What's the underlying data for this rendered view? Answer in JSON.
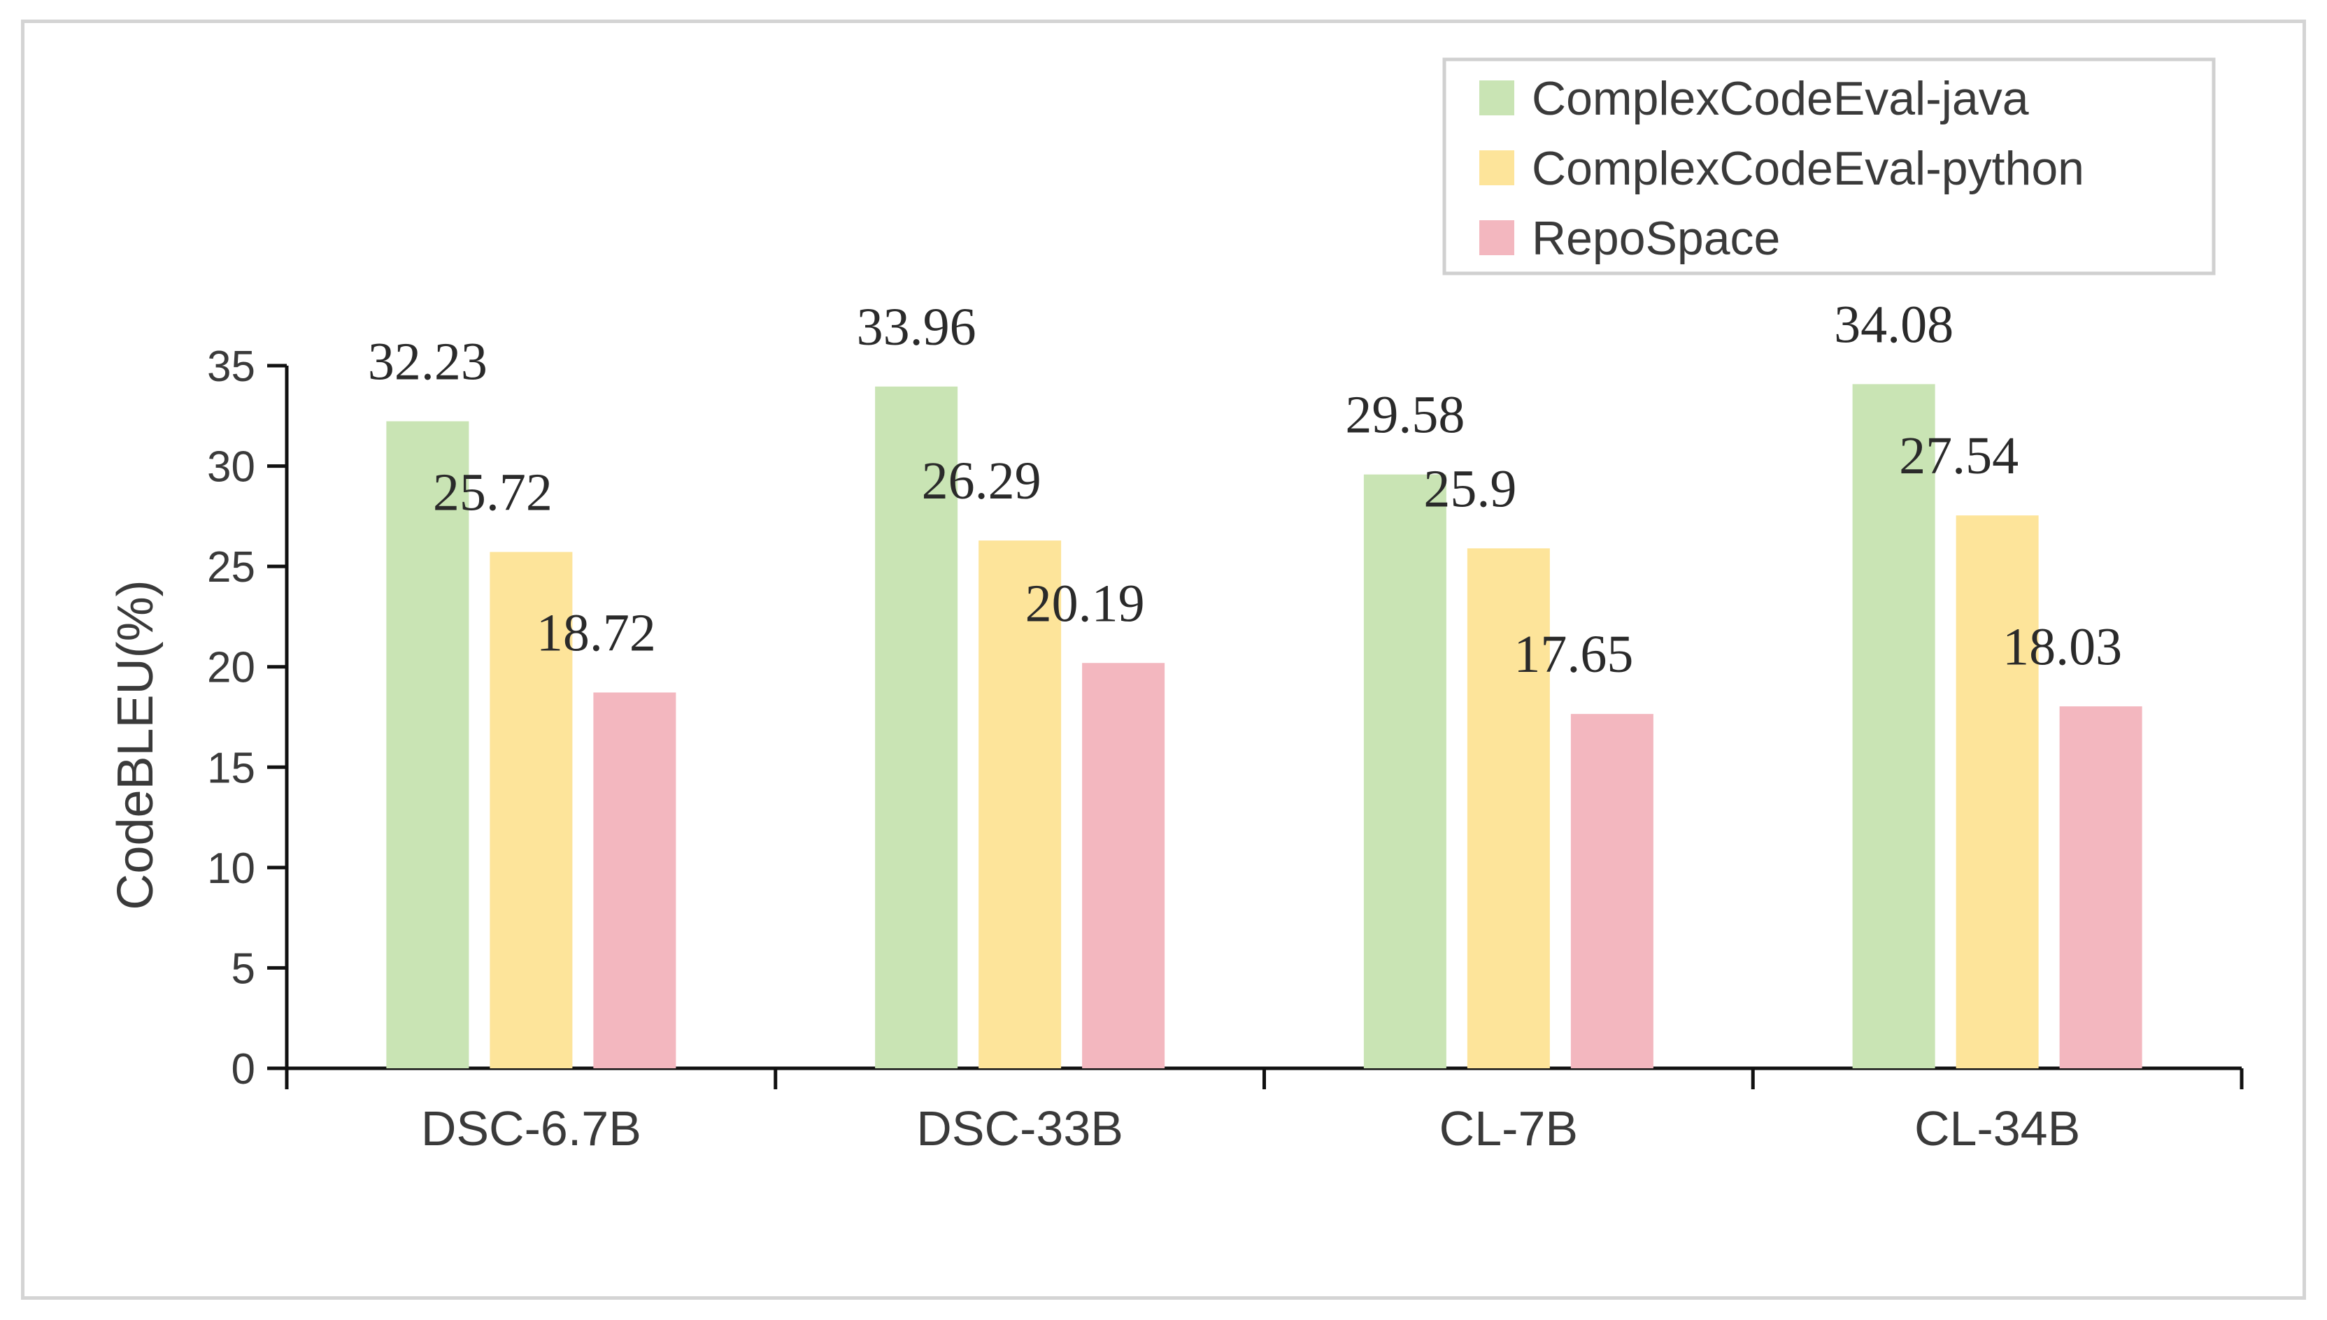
{
  "chart_data": {
    "type": "bar",
    "categories": [
      "DSC-6.7B",
      "DSC-33B",
      "CL-7B",
      "CL-34B"
    ],
    "series": [
      {
        "name": "ComplexCodeEval-java",
        "color": "#c9e4b4",
        "values": [
          32.23,
          33.96,
          29.58,
          34.08
        ]
      },
      {
        "name": "ComplexCodeEval-python",
        "color": "#fde49a",
        "values": [
          25.72,
          26.29,
          25.9,
          27.54
        ]
      },
      {
        "name": "RepoSpace",
        "color": "#f3b7bf",
        "values": [
          18.72,
          20.19,
          17.65,
          18.03
        ]
      }
    ],
    "value_labels": [
      [
        "32.23",
        "33.96",
        "29.58",
        "34.08"
      ],
      [
        "25.72",
        "26.29",
        "25.9",
        "27.54"
      ],
      [
        "18.72",
        "20.19",
        "17.65",
        "18.03"
      ]
    ],
    "ylabel": "CodeBLEU(%)",
    "ylim": [
      0,
      35
    ],
    "yticks": [
      0,
      5,
      10,
      15,
      20,
      25,
      30,
      35
    ],
    "grid": false,
    "legend_position": "top-right"
  }
}
